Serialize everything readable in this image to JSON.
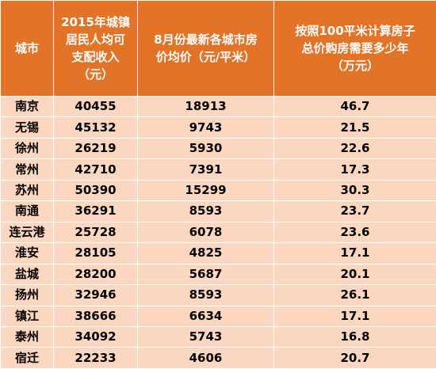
{
  "table": {
    "headers": [
      "城市",
      "2015年城镇\n居民人均可\n支配收入\n（元）",
      "8月份最新各城市房\n价均价（元/平米）",
      "按照100平米计算房子\n总价购房需要多少年\n（万元）"
    ],
    "rows": [
      [
        "南京",
        "40455",
        "18913",
        "46.7"
      ],
      [
        "无锡",
        "45132",
        "9743",
        "21.5"
      ],
      [
        "徐州",
        "26219",
        "5930",
        "22.6"
      ],
      [
        "常州",
        "42710",
        "7391",
        "17.3"
      ],
      [
        "苏州",
        "50390",
        "15299",
        "30.3"
      ],
      [
        "南通",
        "36291",
        "8593",
        "23.7"
      ],
      [
        "连云港",
        "25728",
        "6078",
        "23.6"
      ],
      [
        "淮安",
        "28105",
        "4825",
        "17.1"
      ],
      [
        "盐城",
        "28200",
        "5687",
        "20.1"
      ],
      [
        "扬州",
        "32946",
        "8593",
        "26.1"
      ],
      [
        "镇江",
        "38666",
        "6634",
        "17.1"
      ],
      [
        "泰州",
        "34092",
        "5743",
        "16.8"
      ],
      [
        "宿迁",
        "22233",
        "4606",
        "20.7"
      ]
    ]
  }
}
